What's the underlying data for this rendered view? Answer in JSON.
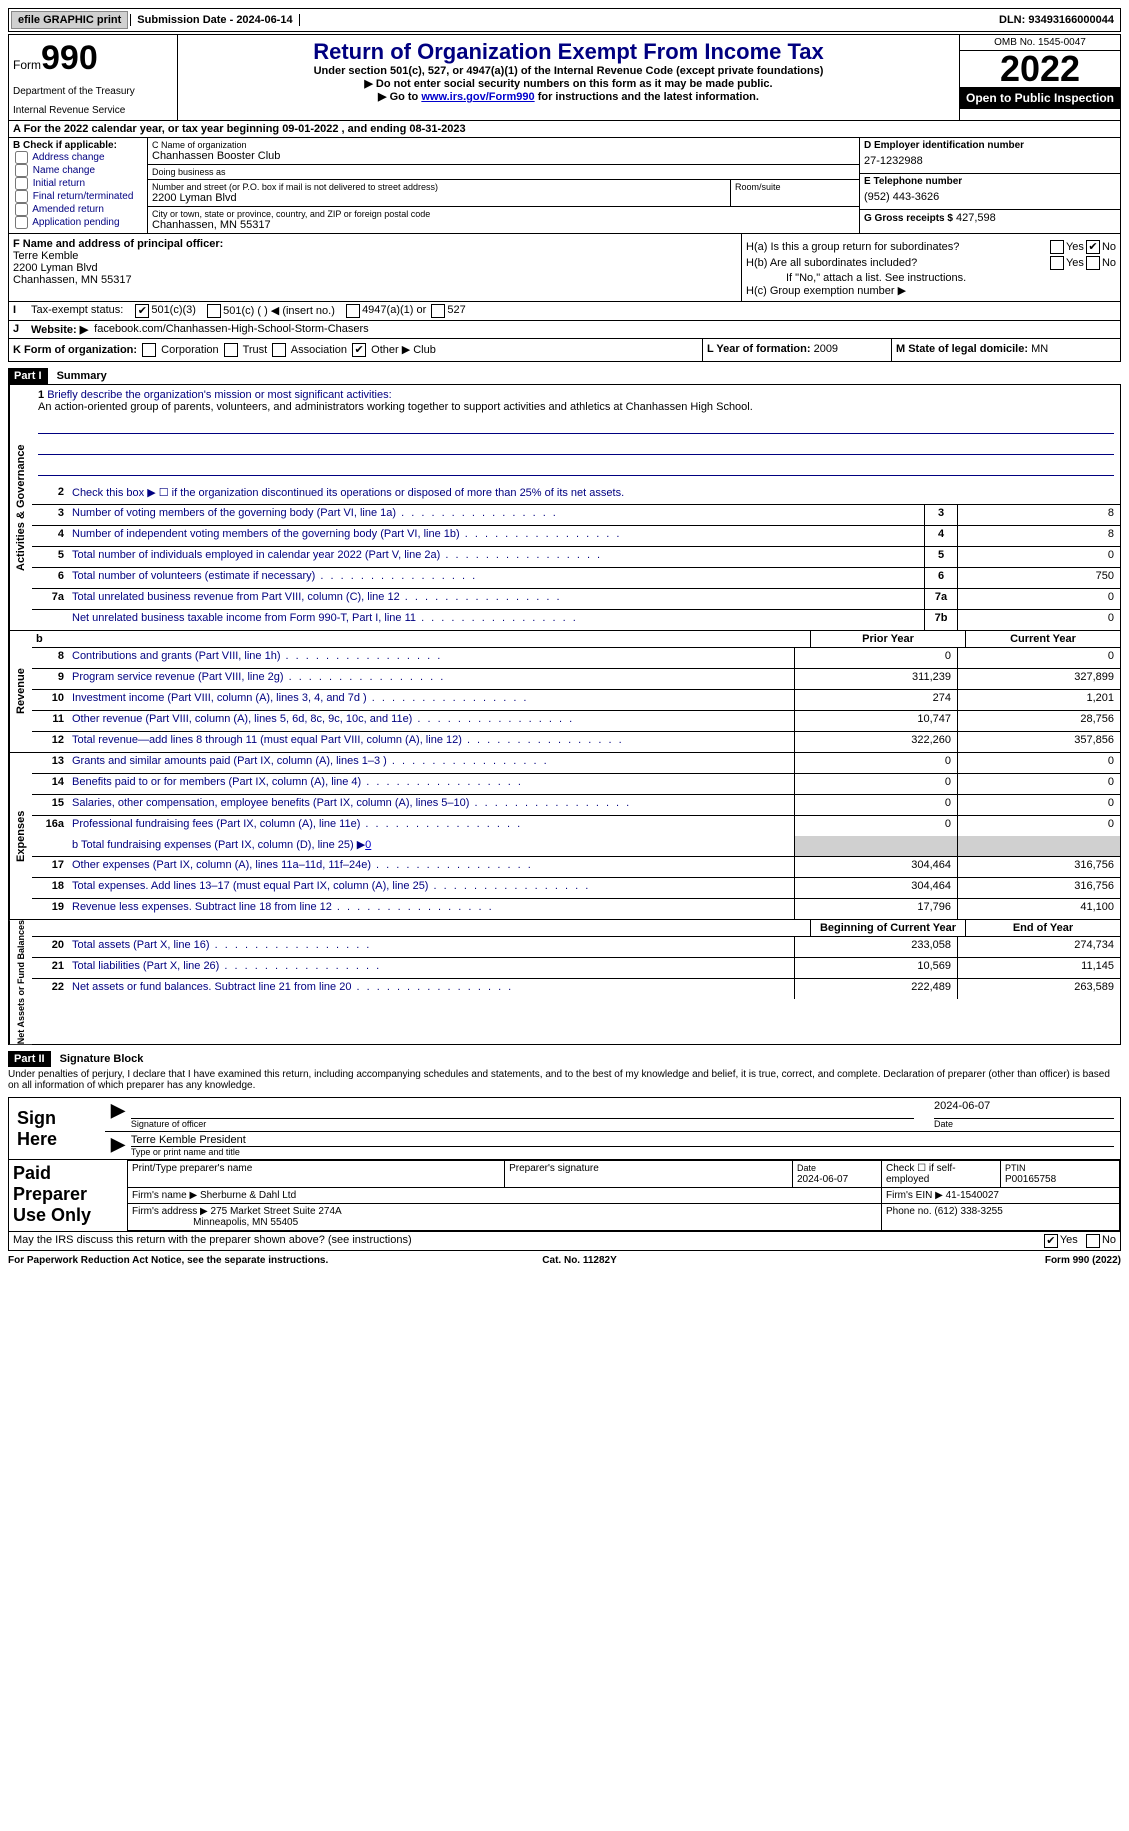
{
  "top": {
    "efile_btn": "efile GRAPHIC print",
    "sub_date_label": "Submission Date - 2024-06-14",
    "dln": "DLN: 93493166000044"
  },
  "header": {
    "form_word": "Form",
    "form_num": "990",
    "title": "Return of Organization Exempt From Income Tax",
    "subtitle": "Under section 501(c), 527, or 4947(a)(1) of the Internal Revenue Code (except private foundations)",
    "note1": "▶ Do not enter social security numbers on this form as it may be made public.",
    "note2_pre": "▶ Go to ",
    "note2_link": "www.irs.gov/Form990",
    "note2_post": " for instructions and the latest information.",
    "dept": "Department of the Treasury",
    "irs": "Internal Revenue Service",
    "omb": "OMB No. 1545-0047",
    "year": "2022",
    "inspection": "Open to Public Inspection"
  },
  "row_a": "A  For the 2022 calendar year, or tax year beginning 09-01-2022   , and ending 08-31-2023",
  "col_b": {
    "head": "B Check if applicable:",
    "opts": [
      "Address change",
      "Name change",
      "Initial return",
      "Final return/terminated",
      "Amended return",
      "Application pending"
    ]
  },
  "col_c": {
    "name_lbl": "C Name of organization",
    "name": "Chanhassen Booster Club",
    "dba_lbl": "Doing business as",
    "dba": "",
    "addr_lbl": "Number and street (or P.O. box if mail is not delivered to street address)",
    "room_lbl": "Room/suite",
    "addr": "2200 Lyman Blvd",
    "city_lbl": "City or town, state or province, country, and ZIP or foreign postal code",
    "city": "Chanhassen, MN  55317"
  },
  "col_d": {
    "ein_lbl": "D Employer identification number",
    "ein": "27-1232988",
    "phone_lbl": "E Telephone number",
    "phone": "(952) 443-3626",
    "gross_lbl": "G Gross receipts $",
    "gross": "427,598"
  },
  "col_f": {
    "lbl": "F Name and address of principal officer:",
    "name": "Terre Kemble",
    "addr1": "2200 Lyman Blvd",
    "addr2": "Chanhassen, MN  55317"
  },
  "col_h": {
    "ha": "H(a)  Is this a group return for subordinates?",
    "hb": "H(b)  Are all subordinates included?",
    "hb_note": "If \"No,\" attach a list. See instructions.",
    "hc": "H(c)  Group exemption number ▶",
    "yes": "Yes",
    "no": "No"
  },
  "row_i": {
    "lead": "I",
    "lbl": "Tax-exempt status:",
    "o1": "501(c)(3)",
    "o2": "501(c) (  ) ◀ (insert no.)",
    "o3": "4947(a)(1) or",
    "o4": "527"
  },
  "row_j": {
    "lead": "J",
    "lbl": "Website: ▶",
    "val": "facebook.com/Chanhassen-High-School-Storm-Chasers"
  },
  "row_k": {
    "lbl": "K Form of organization:",
    "opts": [
      "Corporation",
      "Trust",
      "Association",
      "Other ▶"
    ],
    "other_val": "Club",
    "l_lbl": "L Year of formation:",
    "l_val": "2009",
    "m_lbl": "M State of legal domicile:",
    "m_val": "MN"
  },
  "part1": {
    "bar": "Part I",
    "title": "Summary"
  },
  "summary": {
    "l1_lbl": "Briefly describe the organization's mission or most significant activities:",
    "l1_text": "An action-oriented group of parents, volunteers, and administrators working together to support activities and athletics at Chanhassen High School.",
    "l2": "Check this box ▶ ☐  if the organization discontinued its operations or disposed of more than 25% of its net assets.",
    "l3": "Number of voting members of the governing body (Part VI, line 1a)",
    "l3v": "8",
    "l4": "Number of independent voting members of the governing body (Part VI, line 1b)",
    "l4v": "8",
    "l5": "Total number of individuals employed in calendar year 2022 (Part V, line 2a)",
    "l5v": "0",
    "l6": "Total number of volunteers (estimate if necessary)",
    "l6v": "750",
    "l7a": "Total unrelated business revenue from Part VIII, column (C), line 12",
    "l7av": "0",
    "l7b": "Net unrelated business taxable income from Form 990-T, Part I, line 11",
    "l7bv": "0"
  },
  "revenue": {
    "prior_head": "Prior Year",
    "curr_head": "Current Year",
    "rows": [
      {
        "n": "8",
        "d": "Contributions and grants (Part VIII, line 1h)",
        "p": "0",
        "c": "0"
      },
      {
        "n": "9",
        "d": "Program service revenue (Part VIII, line 2g)",
        "p": "311,239",
        "c": "327,899"
      },
      {
        "n": "10",
        "d": "Investment income (Part VIII, column (A), lines 3, 4, and 7d )",
        "p": "274",
        "c": "1,201"
      },
      {
        "n": "11",
        "d": "Other revenue (Part VIII, column (A), lines 5, 6d, 8c, 9c, 10c, and 11e)",
        "p": "10,747",
        "c": "28,756"
      },
      {
        "n": "12",
        "d": "Total revenue—add lines 8 through 11 (must equal Part VIII, column (A), line 12)",
        "p": "322,260",
        "c": "357,856"
      }
    ]
  },
  "expenses": {
    "rows": [
      {
        "n": "13",
        "d": "Grants and similar amounts paid (Part IX, column (A), lines 1–3 )",
        "p": "0",
        "c": "0"
      },
      {
        "n": "14",
        "d": "Benefits paid to or for members (Part IX, column (A), line 4)",
        "p": "0",
        "c": "0"
      },
      {
        "n": "15",
        "d": "Salaries, other compensation, employee benefits (Part IX, column (A), lines 5–10)",
        "p": "0",
        "c": "0"
      },
      {
        "n": "16a",
        "d": "Professional fundraising fees (Part IX, column (A), line 11e)",
        "p": "0",
        "c": "0"
      }
    ],
    "l16b_lbl": "b  Total fundraising expenses (Part IX, column (D), line 25) ▶",
    "l16b_val": "0",
    "rows2": [
      {
        "n": "17",
        "d": "Other expenses (Part IX, column (A), lines 11a–11d, 11f–24e)",
        "p": "304,464",
        "c": "316,756"
      },
      {
        "n": "18",
        "d": "Total expenses. Add lines 13–17 (must equal Part IX, column (A), line 25)",
        "p": "304,464",
        "c": "316,756"
      },
      {
        "n": "19",
        "d": "Revenue less expenses. Subtract line 18 from line 12",
        "p": "17,796",
        "c": "41,100"
      }
    ]
  },
  "netassets": {
    "begin_head": "Beginning of Current Year",
    "end_head": "End of Year",
    "rows": [
      {
        "n": "20",
        "d": "Total assets (Part X, line 16)",
        "p": "233,058",
        "c": "274,734"
      },
      {
        "n": "21",
        "d": "Total liabilities (Part X, line 26)",
        "p": "10,569",
        "c": "11,145"
      },
      {
        "n": "22",
        "d": "Net assets or fund balances. Subtract line 21 from line 20",
        "p": "222,489",
        "c": "263,589"
      }
    ]
  },
  "part2": {
    "bar": "Part II",
    "title": "Signature Block",
    "penalties": "Under penalties of perjury, I declare that I have examined this return, including accompanying schedules and statements, and to the best of my knowledge and belief, it is true, correct, and complete. Declaration of preparer (other than officer) is based on all information of which preparer has any knowledge."
  },
  "sign": {
    "left": "Sign Here",
    "sig_lbl": "Signature of officer",
    "date_lbl": "Date",
    "date": "2024-06-07",
    "name_lbl": "Type or print name and title",
    "name": "Terre Kemble  President"
  },
  "prep": {
    "left": "Paid Preparer Use Only",
    "h1": "Print/Type preparer's name",
    "h2": "Preparer's signature",
    "h3_lbl": "Date",
    "h3": "2024-06-07",
    "h4": "Check ☐ if self-employed",
    "h5_lbl": "PTIN",
    "h5": "P00165758",
    "firm_lbl": "Firm's name    ▶",
    "firm": "Sherburne & Dahl Ltd",
    "ein_lbl": "Firm's EIN ▶",
    "ein": "41-1540027",
    "addr_lbl": "Firm's address ▶",
    "addr1": "275 Market Street Suite 274A",
    "addr2": "Minneapolis, MN  55405",
    "phone_lbl": "Phone no.",
    "phone": "(612) 338-3255"
  },
  "discuss": {
    "q": "May the IRS discuss this return with the preparer shown above? (see instructions)",
    "yes": "Yes",
    "no": "No"
  },
  "footer": {
    "left": "For Paperwork Reduction Act Notice, see the separate instructions.",
    "mid": "Cat. No. 11282Y",
    "right": "Form 990 (2022)"
  },
  "side_labels": {
    "ag": "Activities & Governance",
    "rev": "Revenue",
    "exp": "Expenses",
    "na": "Net Assets or Fund Balances"
  }
}
